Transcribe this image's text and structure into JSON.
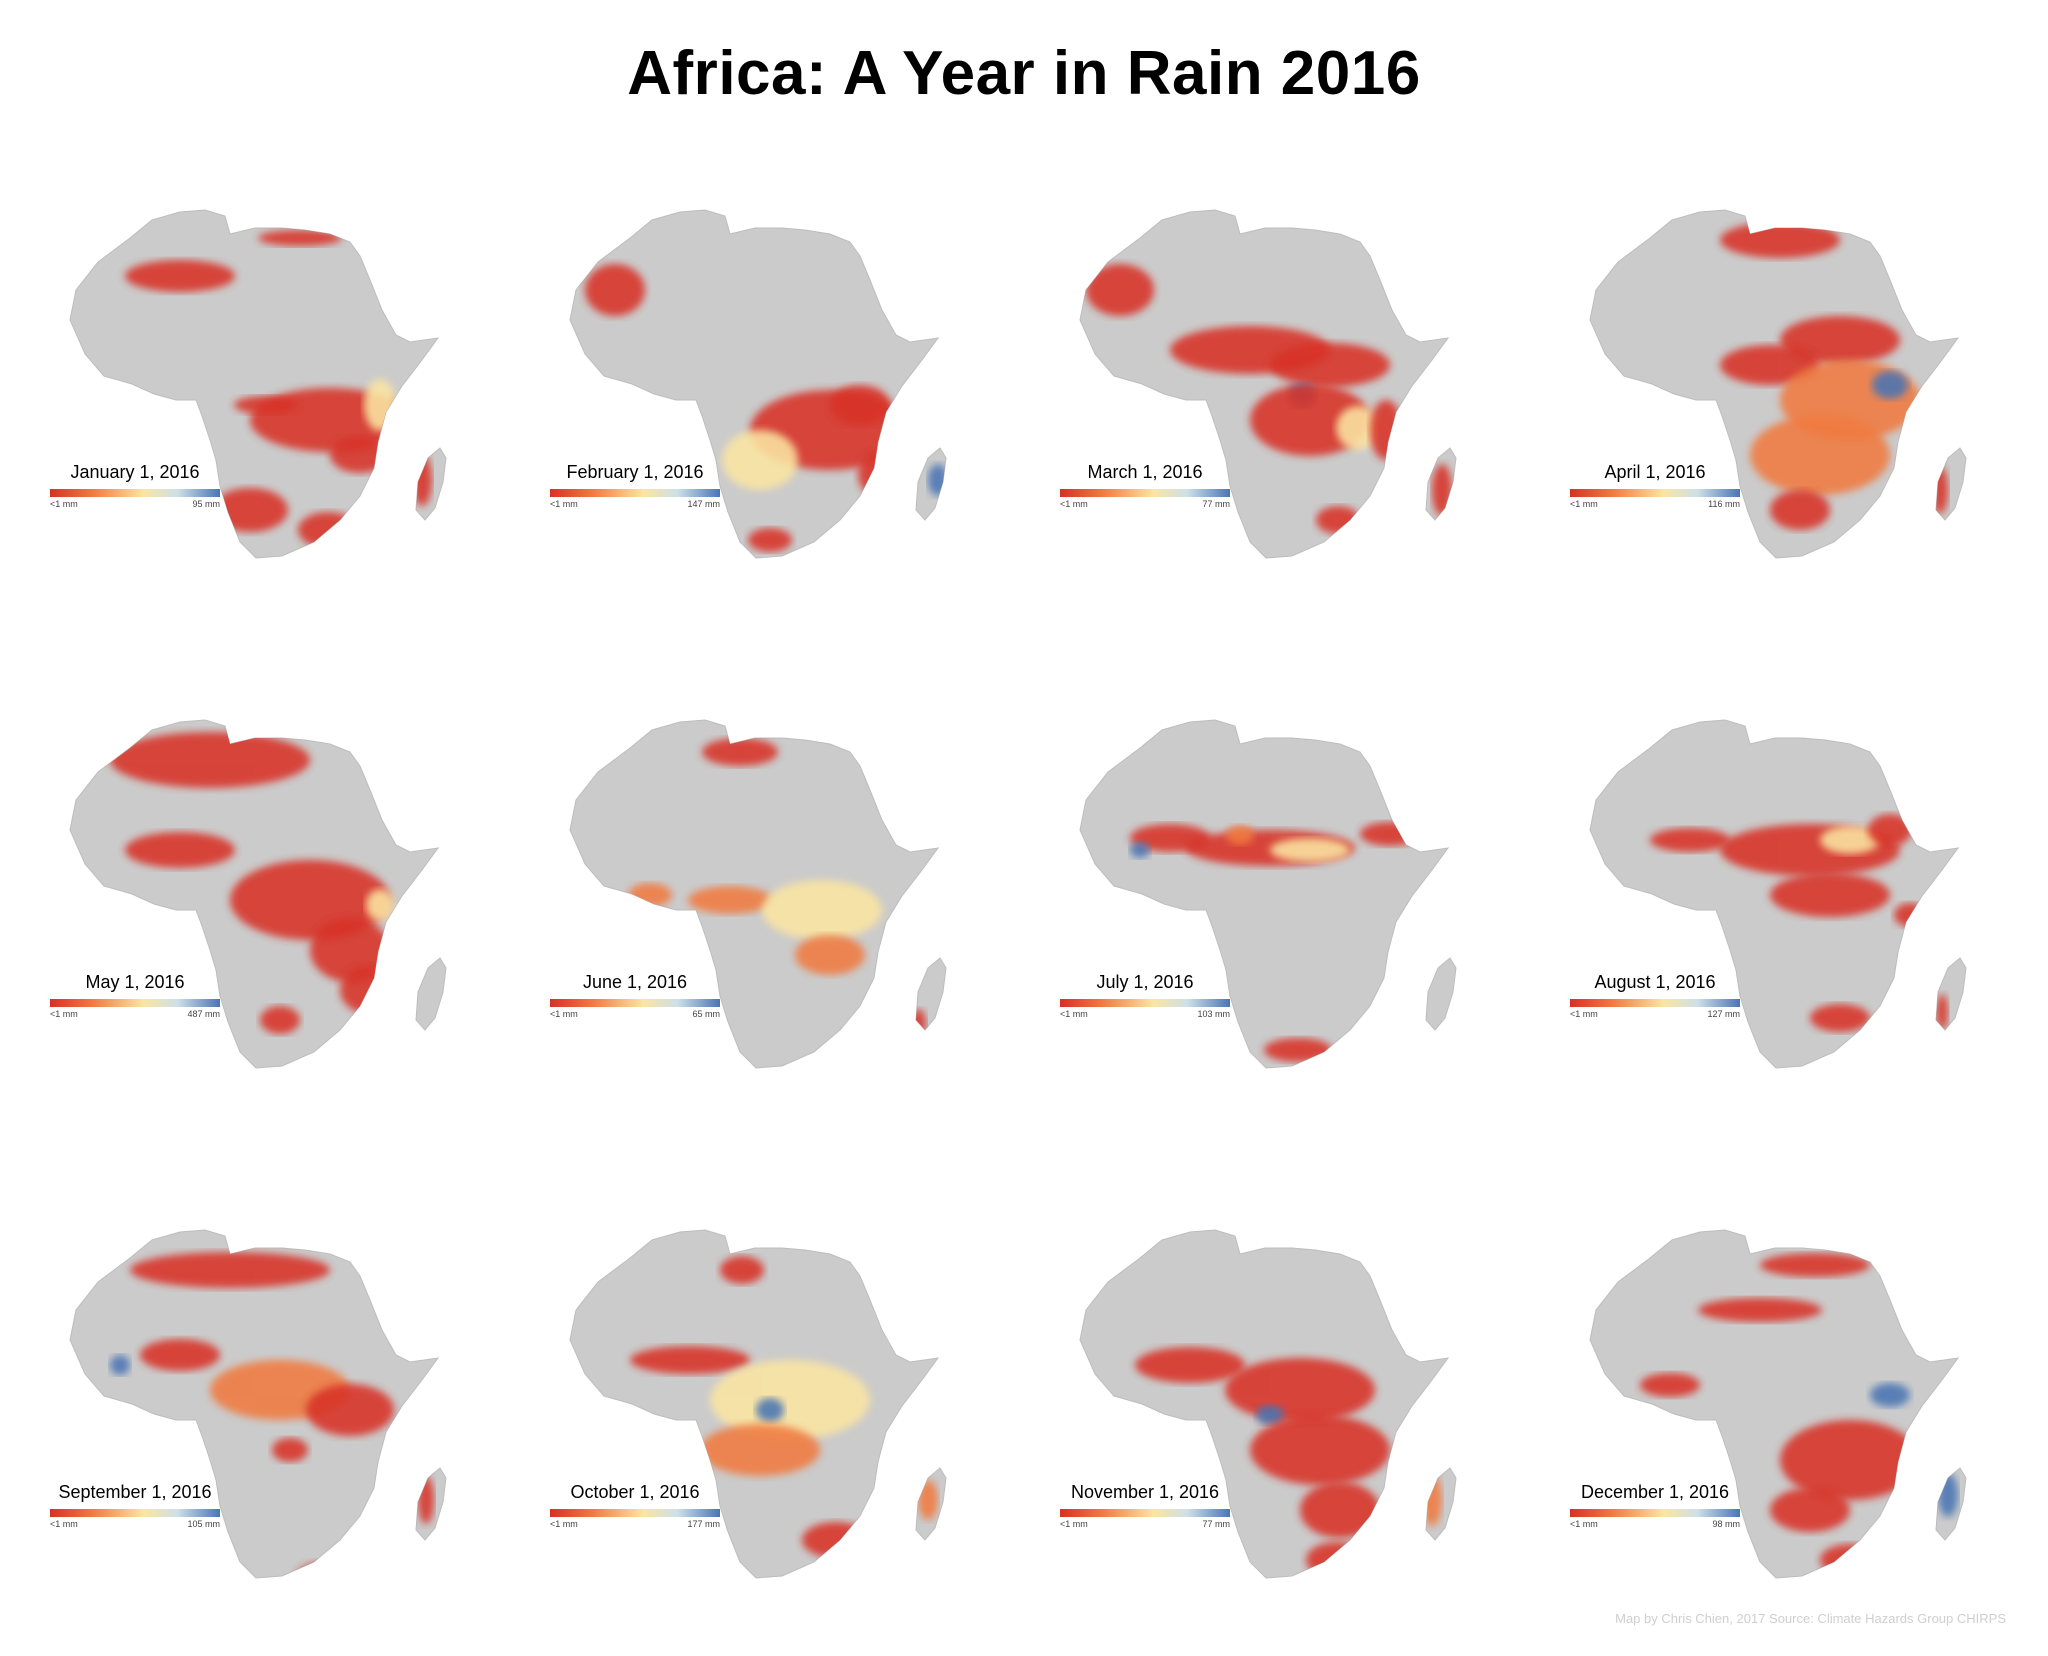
{
  "title": "Africa: A Year in Rain 2016",
  "credit": "Map by Chris Chien, 2017 Source: Climate Hazards Group CHIRPS",
  "colors": {
    "land": "#cbcbcb",
    "land_edge": "#bdbdbd",
    "low": "#d83026",
    "mid_low": "#f07a40",
    "mid": "#fbe5a2",
    "mid_high": "#cde0e8",
    "high": "#4a74b4"
  },
  "legend_low_label": "<1 mm",
  "panels": [
    {
      "date": "January 1, 2016",
      "max": "95 mm"
    },
    {
      "date": "February 1, 2016",
      "max": "147 mm"
    },
    {
      "date": "March 1, 2016",
      "max": "77 mm"
    },
    {
      "date": "April 1, 2016",
      "max": "116 mm"
    },
    {
      "date": "May 1, 2016",
      "max": "487 mm"
    },
    {
      "date": "June 1, 2016",
      "max": "65 mm"
    },
    {
      "date": "July 1, 2016",
      "max": "103 mm"
    },
    {
      "date": "August 1, 2016",
      "max": "127 mm"
    },
    {
      "date": "September 1, 2016",
      "max": "105 mm"
    },
    {
      "date": "October 1, 2016",
      "max": "177 mm"
    },
    {
      "date": "November 1, 2016",
      "max": "77 mm"
    },
    {
      "date": "December 1, 2016",
      "max": "98 mm"
    }
  ]
}
